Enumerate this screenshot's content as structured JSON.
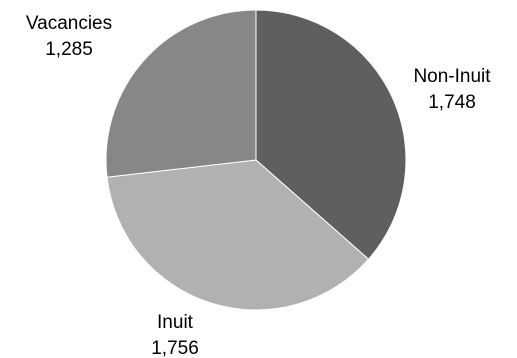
{
  "chart_data": {
    "type": "pie",
    "title": "",
    "slices": [
      {
        "name": "Non-Inuit",
        "value": 1748,
        "value_label": "1,748",
        "color": "#5f5f5f"
      },
      {
        "name": "Inuit",
        "value": 1756,
        "value_label": "1,756",
        "color": "#b1b1b1"
      },
      {
        "name": "Vacancies",
        "value": 1285,
        "value_label": "1,285",
        "color": "#878787"
      }
    ],
    "start_angle_deg": 0,
    "direction": "clockwise",
    "slice_border_color": "#ffffff",
    "legend": "none"
  }
}
